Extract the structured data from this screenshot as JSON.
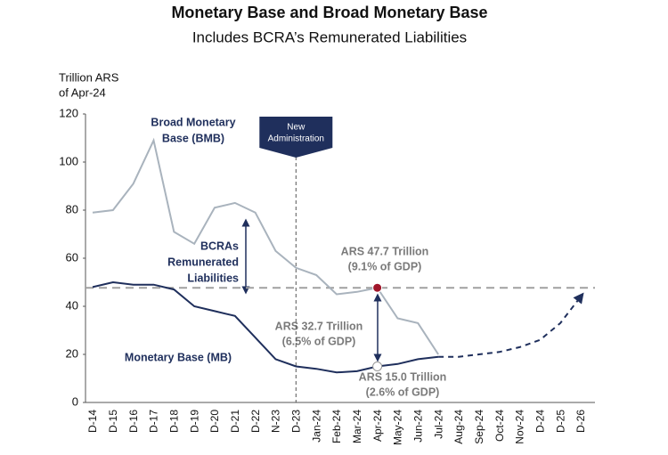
{
  "chart_data": {
    "type": "line",
    "title": "Monetary Base and Broad Monetary Base",
    "subtitle": "Includes BCRA’s  Remunerated Liabilities",
    "ylabel": [
      "Trillion ARS",
      "of Apr-24"
    ],
    "categories": [
      "D-14",
      "D-15",
      "D-16",
      "D-17",
      "D-18",
      "D-19",
      "D-20",
      "D-21",
      "D-22",
      "N-23",
      "D-23",
      "Jan-24",
      "Feb-24",
      "Mar-24",
      "Apr-24",
      "May-24",
      "Jun-24",
      "Jul-24",
      "Aug-24",
      "Sep-24",
      "Oct-24",
      "Nov-24",
      "D-24",
      "D-25",
      "D-26"
    ],
    "series": [
      {
        "color": "#a9b3bd",
        "values": [
          79,
          80,
          91,
          109,
          71,
          66,
          81,
          83,
          79,
          63,
          56,
          53,
          45,
          46,
          47.7,
          35,
          33,
          20,
          null,
          null,
          null,
          null,
          null,
          null,
          null
        ]
      },
      {
        "color": "#1f2f5c",
        "values": [
          48,
          50,
          49,
          49,
          47,
          40,
          38,
          36,
          27,
          18,
          15,
          14,
          12.5,
          13,
          15,
          16,
          18,
          19,
          null,
          null,
          null,
          null,
          null,
          null,
          null
        ]
      },
      {
        "color": "#1f2f5c",
        "dashed": true,
        "values": [
          null,
          null,
          null,
          null,
          null,
          null,
          null,
          null,
          null,
          null,
          null,
          null,
          null,
          null,
          null,
          null,
          null,
          19,
          19,
          20,
          21,
          23,
          26,
          33,
          44
        ]
      }
    ],
    "reference_line": 47.7,
    "ylim": [
      0,
      120
    ],
    "yticks": [
      0,
      20,
      40,
      60,
      80,
      100,
      120
    ],
    "event": {
      "category": "D-23",
      "label": [
        "New",
        "Administration"
      ]
    },
    "annotations": {
      "bmb": [
        "Broad Monetary",
        "Base (BMB)"
      ],
      "remunerated": [
        "BCRAs",
        "Remunerated",
        "Liabilities"
      ],
      "mb": [
        "Monetary Base (MB)"
      ],
      "top": [
        "ARS 47.7 Trillion",
        "(9.1% of GDP)"
      ],
      "gap": [
        "ARS 32.7 Trillion",
        "(6.5% of GDP)"
      ],
      "bottom": [
        "ARS 15.0 Trillion",
        "(2.6% of GDP)"
      ]
    }
  }
}
